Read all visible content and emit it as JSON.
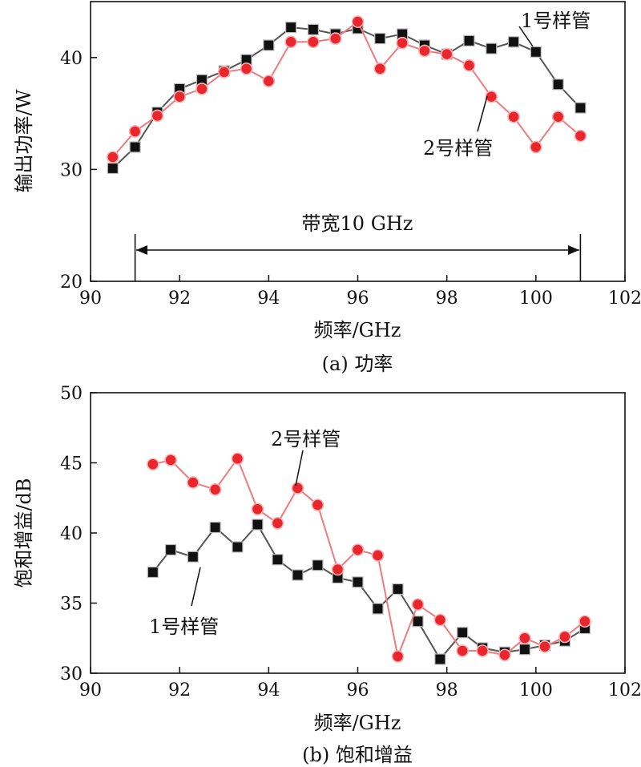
{
  "chart_data": [
    {
      "type": "line",
      "caption": "(a) 功率",
      "xlabel": "频率/GHz",
      "ylabel": "输出功率/W",
      "xlim": [
        90,
        102
      ],
      "ylim": [
        20,
        45
      ],
      "xticks": [
        90,
        92,
        94,
        96,
        98,
        100,
        102
      ],
      "yticks": [
        20,
        30,
        40
      ],
      "series": [
        {
          "name": "1号样管",
          "color": "#111111",
          "line_color": "#555555",
          "marker": "square",
          "x": [
            90.5,
            91,
            91.5,
            92,
            92.5,
            93,
            93.5,
            94,
            94.5,
            95,
            95.5,
            96,
            96.5,
            97,
            97.5,
            98,
            98.5,
            99,
            99.5,
            100,
            100.5,
            101
          ],
          "y": [
            30.1,
            32.0,
            35.1,
            37.2,
            38.0,
            38.8,
            39.8,
            41.1,
            42.7,
            42.5,
            42.1,
            42.6,
            41.7,
            42.1,
            41.1,
            40.3,
            41.5,
            40.8,
            41.4,
            40.5,
            37.6,
            35.5
          ]
        },
        {
          "name": "2号样管",
          "color": "#e8262b",
          "line_color": "#f07a7d",
          "marker": "circle",
          "x": [
            90.5,
            91,
            91.5,
            92,
            92.5,
            93,
            93.5,
            94,
            94.5,
            95,
            95.5,
            96,
            96.5,
            97,
            97.5,
            98,
            98.5,
            99,
            99.5,
            100,
            100.5,
            101
          ],
          "y": [
            31.1,
            33.4,
            34.8,
            36.5,
            37.2,
            38.7,
            39.0,
            37.9,
            41.4,
            41.4,
            41.7,
            43.2,
            39.0,
            41.3,
            40.6,
            40.3,
            39.3,
            36.5,
            34.7,
            32.0,
            34.7,
            33.0
          ]
        }
      ],
      "annotations": [
        {
          "text": "带宽10 GHz",
          "type": "double-arrow",
          "x_from": 91,
          "x_to": 101,
          "y": 22.8
        },
        {
          "text": "1号样管",
          "series": "1号样管"
        },
        {
          "text": "2号样管",
          "series": "2号样管"
        }
      ]
    },
    {
      "type": "line",
      "caption": "(b) 饱和增益",
      "xlabel": "频率/GHz",
      "ylabel": "饱和增益/dB",
      "xlim": [
        90,
        102
      ],
      "ylim": [
        30,
        50
      ],
      "xticks": [
        90,
        92,
        94,
        96,
        98,
        100,
        102
      ],
      "yticks": [
        30,
        35,
        40,
        45,
        50
      ],
      "series": [
        {
          "name": "1号样管",
          "color": "#111111",
          "line_color": "#555555",
          "marker": "square",
          "x": [
            91.4,
            91.8,
            92.3,
            92.8,
            93.3,
            93.75,
            94.2,
            94.65,
            95.1,
            95.55,
            96.0,
            96.45,
            96.9,
            97.35,
            97.85,
            98.35,
            98.8,
            99.3,
            99.75,
            100.2,
            100.65,
            101.1
          ],
          "y": [
            37.2,
            38.8,
            38.3,
            40.4,
            39.0,
            40.6,
            38.1,
            37.0,
            37.7,
            36.8,
            36.5,
            34.6,
            36.0,
            33.7,
            31.0,
            32.9,
            31.8,
            31.5,
            31.7,
            32.0,
            32.3,
            33.2
          ]
        },
        {
          "name": "2号样管",
          "color": "#e8262b",
          "line_color": "#f07a7d",
          "marker": "circle",
          "x": [
            91.4,
            91.8,
            92.3,
            92.8,
            93.3,
            93.75,
            94.2,
            94.65,
            95.1,
            95.55,
            96.0,
            96.45,
            96.9,
            97.35,
            97.85,
            98.35,
            98.8,
            99.3,
            99.75,
            100.2,
            100.65,
            101.1
          ],
          "y": [
            44.9,
            45.2,
            43.6,
            43.1,
            45.3,
            41.7,
            40.7,
            43.2,
            42.0,
            37.4,
            38.8,
            38.4,
            31.2,
            34.9,
            33.8,
            31.6,
            31.6,
            31.3,
            32.5,
            31.9,
            32.6,
            33.7
          ]
        }
      ],
      "annotations": [
        {
          "text": "2号样管",
          "series": "2号样管"
        },
        {
          "text": "1号样管",
          "series": "1号样管"
        }
      ]
    }
  ]
}
